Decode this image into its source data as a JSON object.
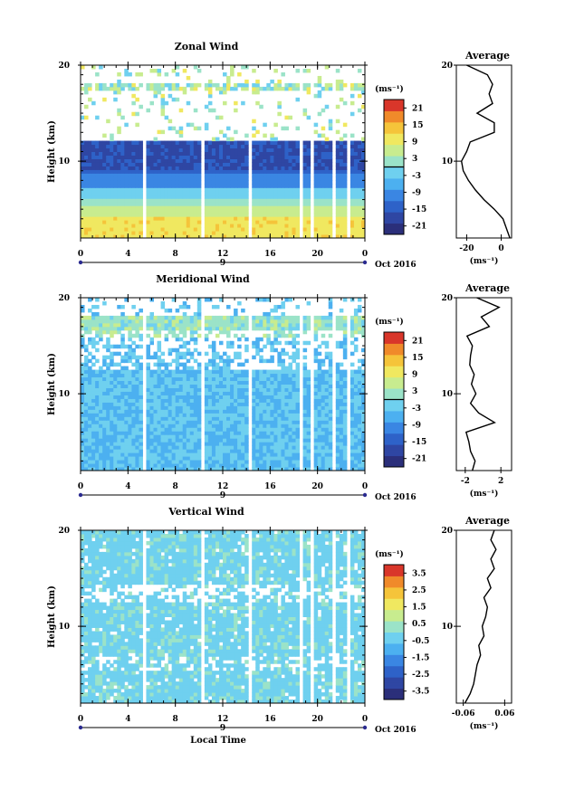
{
  "chart_data": [
    {
      "type": "heatmap",
      "title": "Zonal Wind",
      "ylabel": "Height (km)",
      "ylim": [
        2,
        20
      ],
      "yticks": [
        10,
        20
      ],
      "xlim": [
        0,
        24
      ],
      "xticks": [
        "0",
        "4",
        "8",
        "12",
        "16",
        "20",
        "0"
      ],
      "date_day": "9",
      "date_label": "Oct 2016",
      "colorbar": {
        "unit": "(ms⁻¹)",
        "ticks": [
          "21",
          "15",
          "9",
          "3",
          "-3",
          "-9",
          "-15",
          "-21"
        ],
        "range": [
          -24,
          24
        ],
        "marker": 0
      },
      "profile": {
        "title": "Average",
        "xticks": [
          "-20",
          "0"
        ],
        "xlim": [
          -26,
          6
        ],
        "xlabel": "(ms⁻¹)",
        "height": [
          2,
          3,
          4,
          5,
          6,
          7,
          8,
          9,
          10,
          11,
          12,
          13,
          14,
          15,
          16,
          17,
          18,
          19,
          20
        ],
        "values": [
          5,
          3,
          1,
          -4,
          -10,
          -15,
          -19,
          -22,
          -23,
          -20,
          -18,
          -4,
          -4,
          -14,
          -5,
          -7,
          -5,
          -8,
          -20
        ]
      }
    },
    {
      "type": "heatmap",
      "title": "Meridional Wind",
      "ylabel": "Height (km)",
      "ylim": [
        2,
        20
      ],
      "yticks": [
        10,
        20
      ],
      "xlim": [
        0,
        24
      ],
      "xticks": [
        "0",
        "4",
        "8",
        "12",
        "16",
        "20",
        "0"
      ],
      "date_day": "9",
      "date_label": "Oct 2016",
      "colorbar": {
        "unit": "(ms⁻¹)",
        "ticks": [
          "21",
          "15",
          "9",
          "3",
          "-3",
          "-9",
          "-15",
          "-21"
        ],
        "range": [
          -24,
          24
        ],
        "marker": 0
      },
      "profile": {
        "title": "Average",
        "xticks": [
          "-2",
          "2"
        ],
        "xlim": [
          -3,
          3.2
        ],
        "xlabel": "(ms⁻¹)",
        "height": [
          2,
          3,
          4,
          5,
          6,
          7,
          8,
          9,
          10,
          11,
          12,
          13,
          14,
          15,
          16,
          17,
          18,
          19,
          20
        ],
        "values": [
          -1.2,
          -0.9,
          -1.4,
          -1.6,
          -1.9,
          1.3,
          -0.5,
          -1.4,
          -0.8,
          -1.3,
          -1.0,
          -1.5,
          -1.4,
          -1.2,
          -1.8,
          0.7,
          -0.2,
          1.8,
          -0.7
        ]
      }
    },
    {
      "type": "heatmap",
      "title": "Vertical Wind",
      "ylabel": "Height (km)",
      "xlabel": "Local Time",
      "ylim": [
        2,
        20
      ],
      "yticks": [
        10,
        20
      ],
      "xlim": [
        0,
        24
      ],
      "xticks": [
        "0",
        "4",
        "8",
        "12",
        "16",
        "20",
        "0"
      ],
      "date_day": "9",
      "date_label": "Oct 2016",
      "colorbar": {
        "unit": "(ms⁻¹)",
        "ticks": [
          "3.5",
          "2.5",
          "1.5",
          "0.5",
          "-0.5",
          "-1.5",
          "-2.5",
          "-3.5"
        ],
        "range": [
          -4,
          4
        ]
      },
      "profile": {
        "title": "Average",
        "xticks": [
          "-0.06",
          "0.06"
        ],
        "xlim": [
          -0.08,
          0.08
        ],
        "xlabel": "(ms⁻¹)",
        "height": [
          2,
          3,
          4,
          5,
          6,
          7,
          8,
          9,
          10,
          11,
          12,
          13,
          14,
          15,
          16,
          17,
          18,
          19,
          20
        ],
        "values": [
          -0.055,
          -0.04,
          -0.03,
          -0.025,
          -0.02,
          -0.01,
          -0.015,
          0.0,
          -0.005,
          0.005,
          0.01,
          0.0,
          0.02,
          0.01,
          0.03,
          0.02,
          0.035,
          0.02,
          0.03
        ]
      }
    }
  ]
}
